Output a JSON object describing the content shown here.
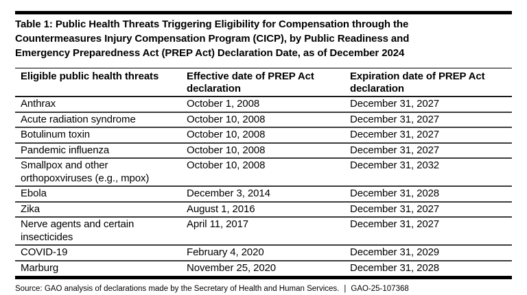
{
  "page": {
    "title_lines": [
      "Table 1: Public Health Threats Triggering Eligibility for Compensation through the",
      "Countermeasures Injury Compensation Program (CICP), by Public Readiness and",
      "Emergency Preparedness Act (PREP Act) Declaration Date, as of December 2024"
    ]
  },
  "table": {
    "columns": [
      "Eligible public health threats",
      "Effective date of PREP Act declaration",
      "Expiration date of PREP Act declaration"
    ],
    "rows": [
      {
        "threat": "Anthrax",
        "effective_date": "October 1, 2008",
        "expiration_date": "December 31, 2027"
      },
      {
        "threat": "Acute radiation syndrome",
        "effective_date": "October 10, 2008",
        "expiration_date": "December 31, 2027"
      },
      {
        "threat": "Botulinum toxin",
        "effective_date": "October 10, 2008",
        "expiration_date": "December 31, 2027"
      },
      {
        "threat": "Pandemic influenza",
        "effective_date": "October 10, 2008",
        "expiration_date": "December 31, 2027"
      },
      {
        "threat": "Smallpox and other orthopoxviruses (e.g., mpox)",
        "effective_date": "October 10, 2008",
        "expiration_date": "December 31, 2032"
      },
      {
        "threat": "Ebola",
        "effective_date": "December 3, 2014",
        "expiration_date": "December 31, 2028"
      },
      {
        "threat": "Zika",
        "effective_date": "August 1, 2016",
        "expiration_date": "December 31, 2027"
      },
      {
        "threat": "Nerve agents and certain insecticides",
        "effective_date": "April 11, 2017",
        "expiration_date": "December 31, 2027"
      },
      {
        "threat": "COVID-19",
        "effective_date": "February 4, 2020",
        "expiration_date": "December 31, 2029"
      },
      {
        "threat": "Marburg",
        "effective_date": "November 25, 2020",
        "expiration_date": "December 31, 2028"
      }
    ]
  },
  "footer": {
    "source": "Source: GAO analysis of declarations made by the Secretary of Health and Human Services.",
    "separator": "|",
    "report_number": "GAO-25-107368"
  },
  "colors": {
    "text": "#000000",
    "heavy_rule": "#000000",
    "row_rule": "#3b3b3b",
    "background": "#ffffff"
  }
}
